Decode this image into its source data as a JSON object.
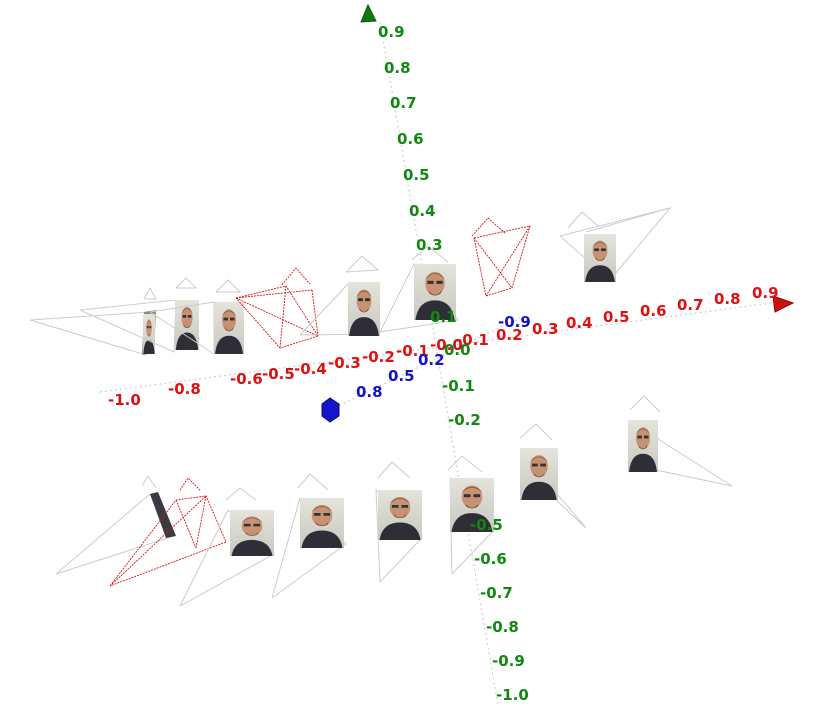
{
  "axes": {
    "x": {
      "color": "#dd1111",
      "ticks": [
        "-1.0",
        "-0.8",
        "-0.6",
        "-0.5",
        "-0.4",
        "-0.3",
        "-0.2",
        "-0.1",
        "-0.0",
        "-0.1",
        "0.2",
        "0.3",
        "0.4",
        "0.5",
        "0.6",
        "0.7",
        "0.8",
        "0.9"
      ]
    },
    "y": {
      "color": "#118811",
      "ticks": [
        "0.9",
        "0.8",
        "0.7",
        "0.6",
        "0.5",
        "0.4",
        "0.3",
        "0.1",
        "0.0",
        "-0.1",
        "-0.2",
        "-0.5",
        "-0.6",
        "-0.7",
        "-0.8",
        "-0.9",
        "-1.0"
      ]
    },
    "z": {
      "color": "#1111cc",
      "ticks": [
        "-0.9",
        "0.2",
        "0.5",
        "0.8"
      ]
    }
  },
  "cameras": {
    "top_row_count": 8,
    "bottom_row_count": 8,
    "frustum_color": "#cccccc",
    "highlight_color": "#dd1111"
  },
  "marker": {
    "color": "#1414c8"
  }
}
